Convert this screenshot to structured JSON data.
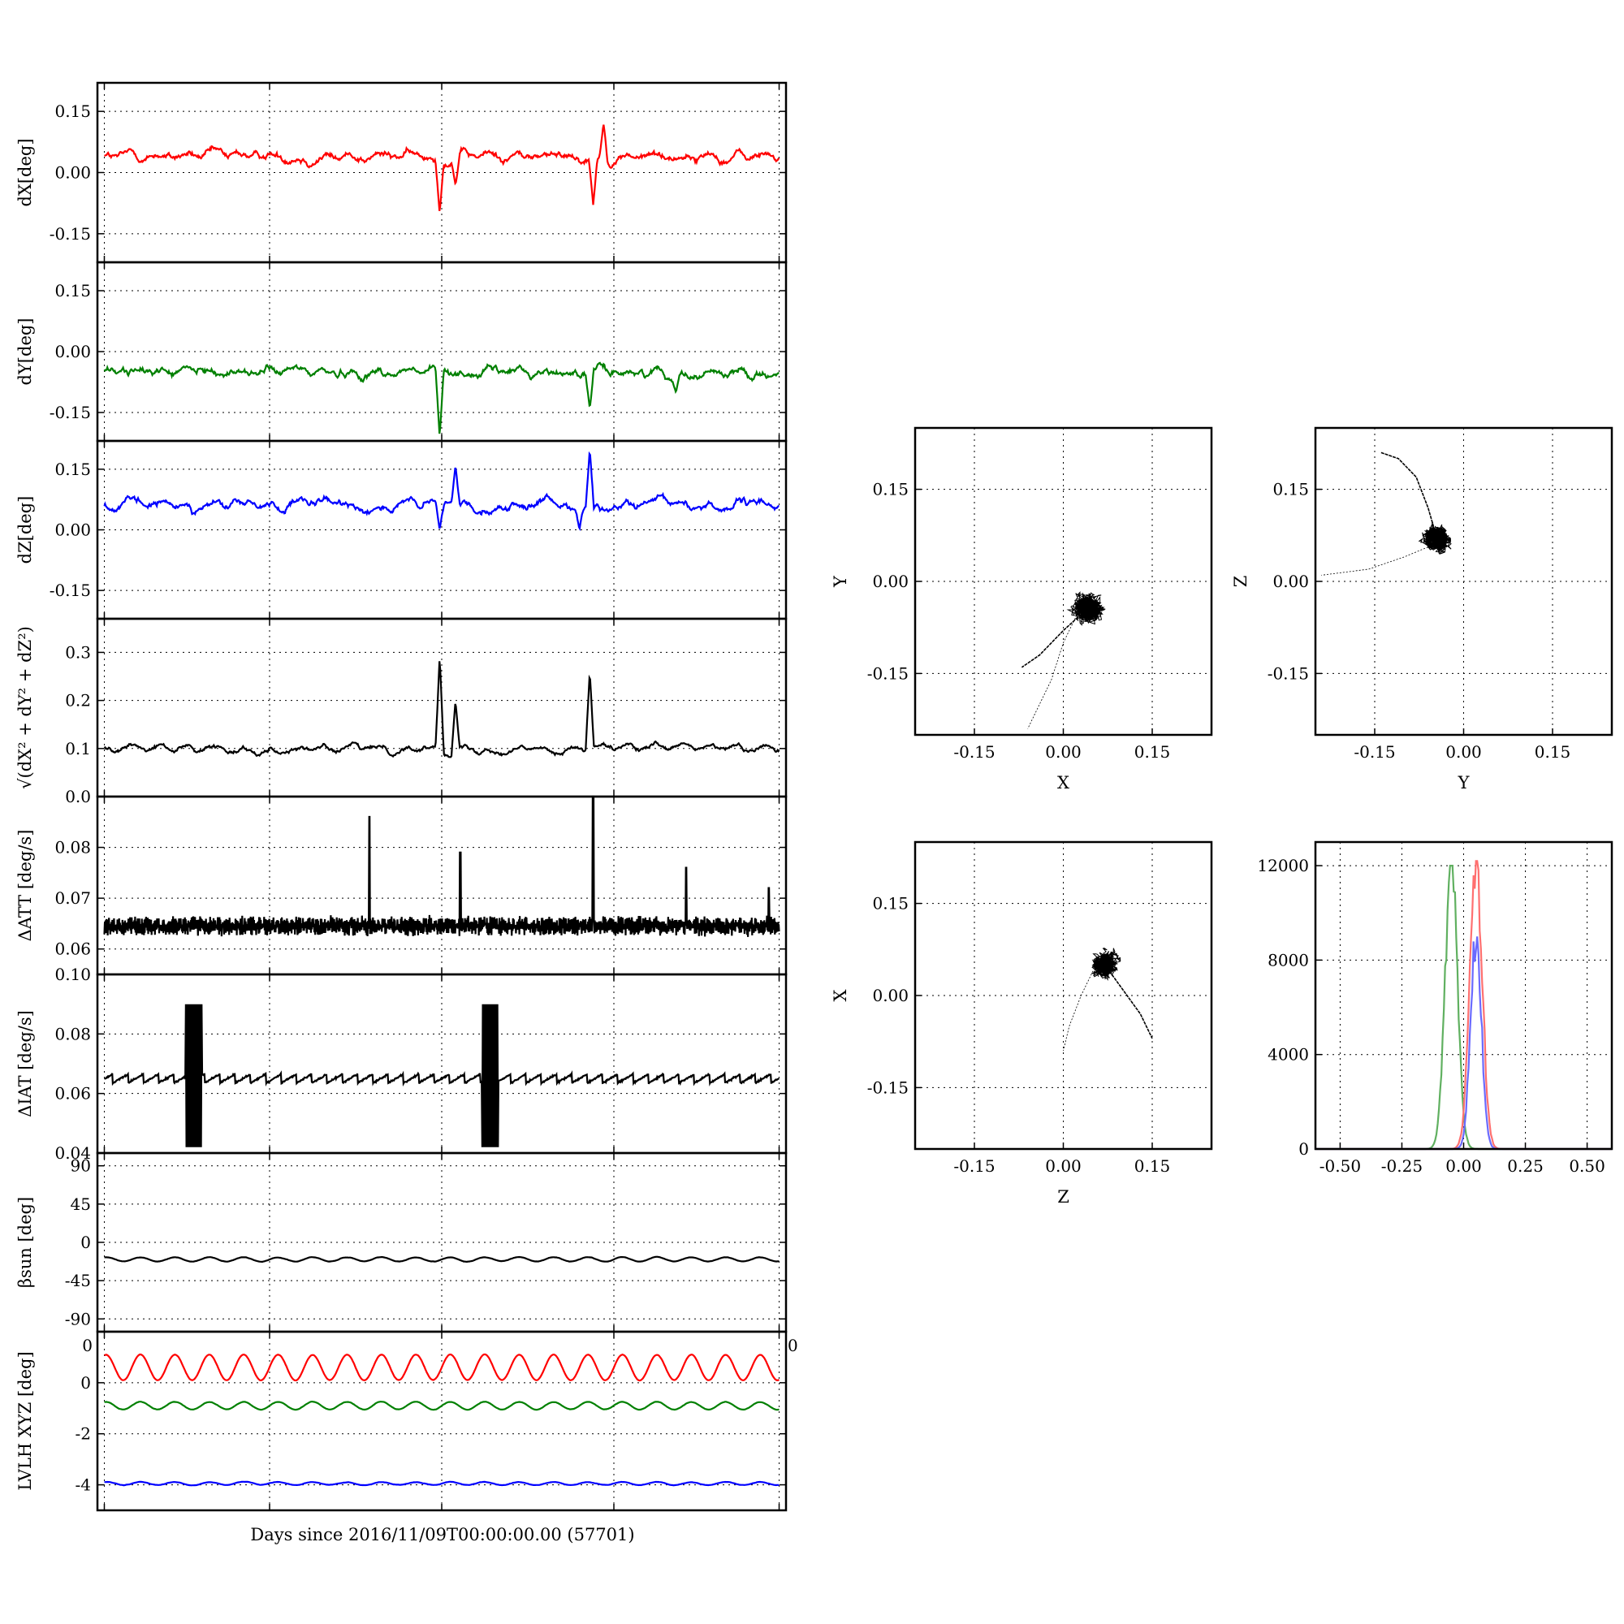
{
  "figure": {
    "xlabel": "Days since 2016/11/09T00:00:00.00 (57701)"
  },
  "colors": {
    "dx": "#ff0000",
    "dy": "#008000",
    "dz": "#0000ff",
    "black": "#000000",
    "hist_x": "#ff7070",
    "hist_y": "#60b060",
    "hist_z": "#6a6aff"
  },
  "chart_data": [
    {
      "id": "dx",
      "type": "line",
      "ylabel": "dX[deg]",
      "ylim": [
        -0.22,
        0.22
      ],
      "yticks": [
        "0.15",
        "0.00",
        "-0.15"
      ],
      "ytick_values": [
        0.15,
        0.0,
        -0.15
      ],
      "grid": true,
      "series_color": "dx",
      "baseline": 0.04,
      "events": [
        {
          "x": 0.497,
          "value": -0.1
        },
        {
          "x": 0.52,
          "value": -0.03
        },
        {
          "x": 0.72,
          "value": -0.08
        },
        {
          "x": 0.735,
          "value": 0.12
        }
      ]
    },
    {
      "id": "dy",
      "type": "line",
      "ylabel": "dY[deg]",
      "ylim": [
        -0.22,
        0.22
      ],
      "yticks": [
        "0.15",
        "0.00",
        "-0.15"
      ],
      "ytick_values": [
        0.15,
        0.0,
        -0.15
      ],
      "grid": true,
      "series_color": "dy",
      "baseline": -0.05,
      "events": [
        {
          "x": 0.497,
          "value": -0.21
        },
        {
          "x": 0.715,
          "value": -0.14
        },
        {
          "x": 0.84,
          "value": -0.1
        }
      ]
    },
    {
      "id": "dz",
      "type": "line",
      "ylabel": "dZ[deg]",
      "ylim": [
        -0.22,
        0.22
      ],
      "yticks": [
        "0.15",
        "0.00",
        "-0.15"
      ],
      "ytick_values": [
        0.15,
        0.0,
        -0.15
      ],
      "grid": true,
      "series_color": "dz",
      "baseline": 0.06,
      "events": [
        {
          "x": 0.497,
          "value": 0.0
        },
        {
          "x": 0.52,
          "value": 0.16
        },
        {
          "x": 0.7,
          "value": 0.0
        },
        {
          "x": 0.715,
          "value": 0.2
        }
      ]
    },
    {
      "id": "dr",
      "type": "line",
      "ylabel": "√(dX² + dY² + dZ²)",
      "ylim": [
        0.0,
        0.37
      ],
      "yticks": [
        "0.3",
        "0.2",
        "0.1",
        "0.0"
      ],
      "ytick_values": [
        0.3,
        0.2,
        0.1,
        0.0
      ],
      "grid": true,
      "series_color": "black",
      "baseline": 0.1,
      "events": [
        {
          "x": 0.497,
          "value": 0.29
        },
        {
          "x": 0.52,
          "value": 0.2
        },
        {
          "x": 0.715,
          "value": 0.26
        }
      ]
    },
    {
      "id": "datt",
      "type": "line",
      "ylabel": "ΔATT [deg/s]",
      "ylim": [
        0.055,
        0.09
      ],
      "yticks": [
        "0.08",
        "0.07",
        "0.06"
      ],
      "ytick_values": [
        0.08,
        0.07,
        0.06
      ],
      "grid": true,
      "series_color": "black",
      "baseline": 0.0645,
      "events": [
        {
          "x": 0.395,
          "value": 0.086
        },
        {
          "x": 0.527,
          "value": 0.079
        },
        {
          "x": 0.72,
          "value": 0.09
        },
        {
          "x": 0.855,
          "value": 0.076
        },
        {
          "x": 0.975,
          "value": 0.072
        }
      ]
    },
    {
      "id": "diat",
      "type": "line",
      "ylabel": "ΔIAT [deg/s]",
      "ylim": [
        0.04,
        0.1
      ],
      "yticks": [
        "0.10",
        "0.08",
        "0.06",
        "0.04"
      ],
      "ytick_values": [
        0.1,
        0.08,
        0.06,
        0.04
      ],
      "grid": true,
      "series_color": "black",
      "baseline": 0.065,
      "events": [
        {
          "x": 0.14,
          "value": 0.09
        },
        {
          "x": 0.57,
          "value": 0.09
        }
      ]
    },
    {
      "id": "beta",
      "type": "line",
      "ylabel": "βsun [deg]",
      "ylim": [
        -105,
        105
      ],
      "yticks": [
        "90",
        "45",
        "0",
        "-45",
        "-90"
      ],
      "ytick_values": [
        90,
        45,
        0,
        -45,
        -90
      ],
      "grid": true,
      "series_color": "black",
      "baseline": -20
    },
    {
      "id": "lvlh",
      "type": "line",
      "ylabel": "LVLH XYZ [deg]",
      "ylim": [
        -5,
        2
      ],
      "yticks": [
        "0",
        "-2",
        "-4"
      ],
      "ytick_values": [
        0,
        -2,
        -4
      ],
      "xticks_overflow": [
        "0",
        "0"
      ],
      "grid": true,
      "series": [
        {
          "color": "dx",
          "baseline": 0.6,
          "amplitude": 0.5
        },
        {
          "color": "dy",
          "baseline": -0.9,
          "amplitude": 0.15
        },
        {
          "color": "dz",
          "baseline": -3.95,
          "amplitude": 0.06
        }
      ]
    },
    {
      "id": "xy",
      "type": "scatter",
      "xlabel": "X",
      "ylabel": "Y",
      "xlim": [
        -0.25,
        0.25
      ],
      "ylim": [
        -0.25,
        0.25
      ],
      "xticks": [
        "-0.15",
        "0.00",
        "0.15"
      ],
      "yticks": [
        "0.15",
        "0.00",
        "-0.15"
      ],
      "tick_values": [
        -0.15,
        0.0,
        0.15
      ],
      "grid": true,
      "cluster_center": [
        0.04,
        -0.045
      ],
      "cluster_spread": [
        0.022,
        0.02
      ],
      "trail_points": [
        [
          0.04,
          -0.045
        ],
        [
          0.0,
          -0.08
        ],
        [
          -0.04,
          -0.12
        ],
        [
          -0.07,
          -0.14
        ]
      ],
      "trail2_points": [
        [
          0.02,
          -0.06
        ],
        [
          0.0,
          -0.1
        ],
        [
          -0.02,
          -0.16
        ],
        [
          -0.06,
          -0.24
        ]
      ]
    },
    {
      "id": "yz",
      "type": "scatter",
      "xlabel": "Y",
      "ylabel": "Z",
      "xlim": [
        -0.25,
        0.25
      ],
      "ylim": [
        -0.25,
        0.25
      ],
      "xticks": [
        "-0.15",
        "0.00",
        "0.15"
      ],
      "yticks": [
        "0.15",
        "0.00",
        "-0.15"
      ],
      "tick_values": [
        -0.15,
        0.0,
        0.15
      ],
      "grid": true,
      "cluster_center": [
        -0.045,
        0.07
      ],
      "cluster_spread": [
        0.018,
        0.018
      ],
      "trail_points": [
        [
          -0.045,
          0.07
        ],
        [
          -0.06,
          0.12
        ],
        [
          -0.08,
          0.17
        ],
        [
          -0.11,
          0.2
        ],
        [
          -0.14,
          0.21
        ]
      ],
      "trail2_points": [
        [
          -0.05,
          0.06
        ],
        [
          -0.1,
          0.04
        ],
        [
          -0.16,
          0.02
        ],
        [
          -0.24,
          0.01
        ]
      ]
    },
    {
      "id": "zx",
      "type": "scatter",
      "xlabel": "Z",
      "ylabel": "X",
      "xlim": [
        -0.25,
        0.25
      ],
      "ylim": [
        -0.25,
        0.25
      ],
      "xticks": [
        "-0.15",
        "0.00",
        "0.15"
      ],
      "yticks": [
        "0.15",
        "0.00",
        "-0.15"
      ],
      "tick_values": [
        -0.15,
        0.0,
        0.15
      ],
      "grid": true,
      "cluster_center": [
        0.07,
        0.05
      ],
      "cluster_spread": [
        0.018,
        0.018
      ],
      "trail_points": [
        [
          0.07,
          0.05
        ],
        [
          0.1,
          0.01
        ],
        [
          0.13,
          -0.03
        ],
        [
          0.15,
          -0.07
        ]
      ],
      "trail2_points": [
        [
          0.05,
          0.04
        ],
        [
          0.03,
          0.0
        ],
        [
          0.01,
          -0.05
        ],
        [
          0.0,
          -0.09
        ]
      ]
    },
    {
      "id": "hist",
      "type": "histogram",
      "xlim": [
        -0.6,
        0.6
      ],
      "ylim": [
        0,
        13000
      ],
      "xticks": [
        "-0.50",
        "-0.25",
        "0.00",
        "0.25",
        "0.50"
      ],
      "xtick_values": [
        -0.5,
        -0.25,
        0.0,
        0.25,
        0.5
      ],
      "yticks": [
        "12000",
        "8000",
        "4000",
        "0"
      ],
      "ytick_values": [
        12000,
        8000,
        4000,
        0
      ],
      "grid": true,
      "series": [
        {
          "color": "hist_y",
          "center": -0.05,
          "width": 0.025,
          "peak": 12000
        },
        {
          "color": "hist_x",
          "center": 0.05,
          "width": 0.025,
          "peak": 12200
        },
        {
          "color": "hist_z",
          "center": 0.05,
          "width": 0.022,
          "peak": 9000
        }
      ]
    }
  ]
}
